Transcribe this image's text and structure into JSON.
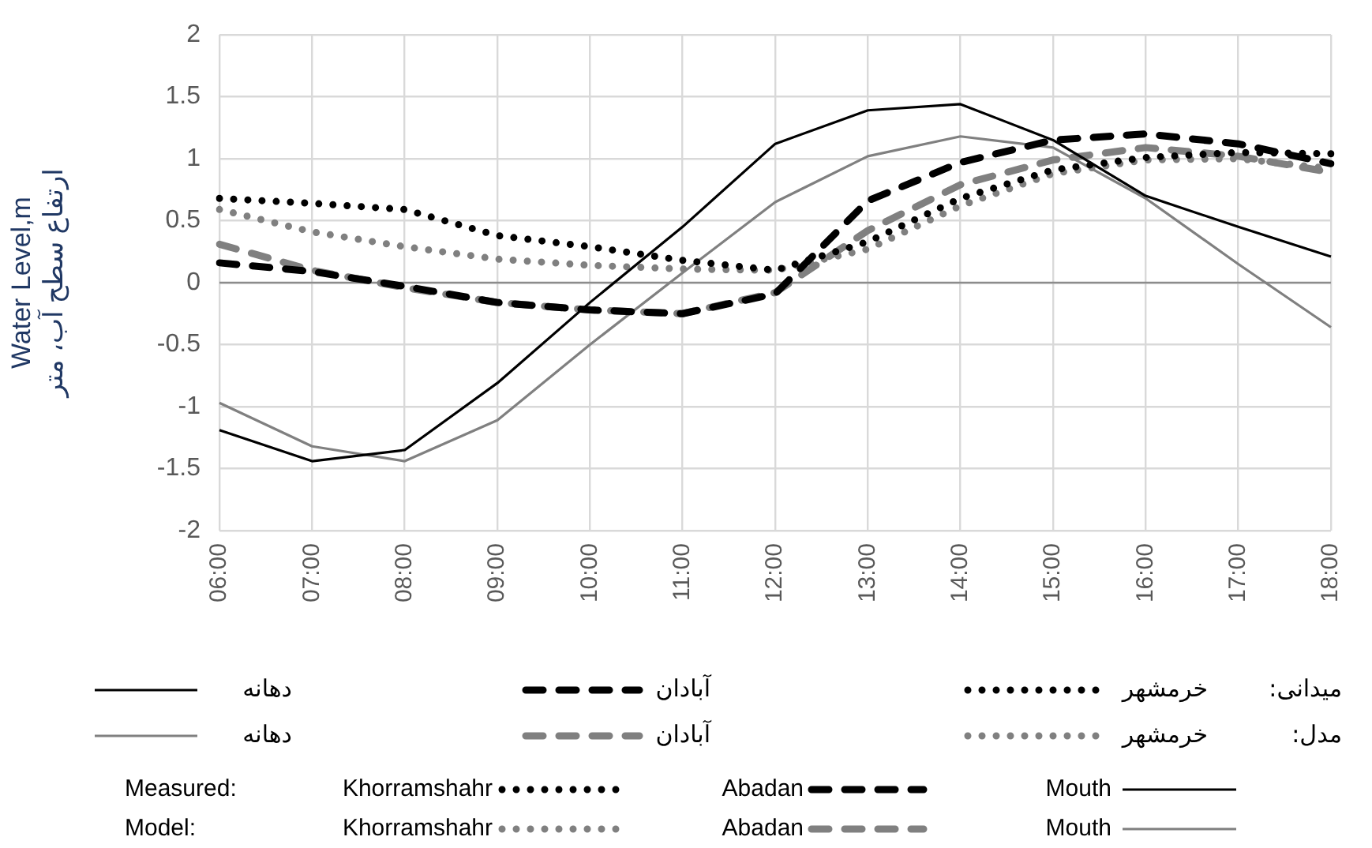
{
  "chart_data": {
    "type": "line",
    "ylabel": "Water Level,m\nارتفاع سطح آب، متر",
    "categories": [
      "06:00",
      "07:00",
      "08:00",
      "09:00",
      "10:00",
      "11:00",
      "12:00",
      "13:00",
      "14:00",
      "15:00",
      "16:00",
      "17:00",
      "18:00"
    ],
    "series": [
      {
        "name": "Khorramshahr",
        "color": "#000000",
        "line_style": "dotted",
        "values": [
          0.68,
          0.64,
          0.59,
          0.38,
          0.29,
          0.18,
          0.1,
          0.33,
          0.68,
          0.91,
          1.01,
          1.05,
          1.04
        ]
      },
      {
        "name": "Abadan",
        "color": "#000000",
        "line_style": "dashed",
        "values": [
          0.16,
          0.09,
          -0.03,
          -0.16,
          -0.22,
          -0.25,
          -0.09,
          0.66,
          0.97,
          1.15,
          1.2,
          1.12,
          0.96
        ]
      },
      {
        "name": "Mouth",
        "color": "#000000",
        "line_style": "solid",
        "values": [
          -1.19,
          -1.44,
          -1.35,
          -0.81,
          -0.16,
          0.45,
          1.12,
          1.39,
          1.44,
          1.15,
          0.7,
          0.45,
          0.21
        ]
      },
      {
        "name": "Khorramshahr",
        "color": "#808080",
        "line_style": "dotted",
        "values": [
          0.59,
          0.41,
          0.29,
          0.19,
          0.14,
          0.11,
          0.1,
          0.27,
          0.62,
          0.88,
          0.99,
          1.0,
          0.92
        ]
      },
      {
        "name": "Abadan",
        "color": "#808080",
        "line_style": "dashed",
        "values": [
          0.31,
          0.1,
          -0.04,
          -0.16,
          -0.22,
          -0.25,
          -0.08,
          0.42,
          0.79,
          0.99,
          1.09,
          1.02,
          0.89
        ]
      },
      {
        "name": "Mouth",
        "color": "#808080",
        "line_style": "solid",
        "values": [
          -0.97,
          -1.32,
          -1.44,
          -1.11,
          -0.5,
          0.08,
          0.65,
          1.02,
          1.18,
          1.09,
          0.68,
          0.15,
          -0.36
        ]
      }
    ],
    "ylim": [
      -2,
      2
    ],
    "yticks": [
      -2,
      -1.5,
      -1,
      -0.5,
      0,
      0.5,
      1,
      1.5,
      2
    ],
    "grid": true,
    "legend": "bottom",
    "marker": "none",
    "annotations": [
      "Measured:",
      "Model:",
      "میدانی:",
      "مدل:",
      "خرمشهر",
      "آبادان",
      "دهانه",
      "خرمشهر",
      "آبادان",
      "دهانه"
    ]
  }
}
